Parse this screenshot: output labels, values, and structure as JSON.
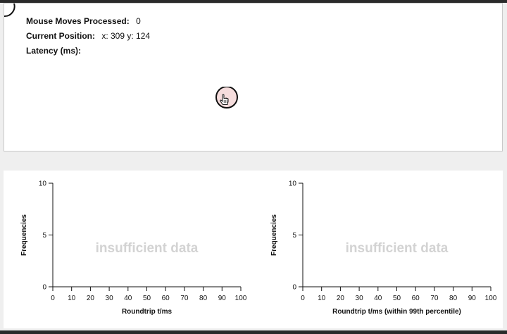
{
  "stats": {
    "moves_label": "Mouse Moves Processed:",
    "moves_value": "0",
    "position_label": "Current Position:",
    "position_value": "x: 309 y: 124",
    "latency_label": "Latency (ms):",
    "latency_value": ""
  },
  "charts": [
    {
      "ylabel": "Frequencies",
      "xlabel": "Roundtrip t/ms",
      "placeholder": "insufficient data",
      "x_ticks": [
        "0",
        "10",
        "20",
        "30",
        "40",
        "50",
        "60",
        "70",
        "80",
        "90",
        "100"
      ],
      "y_ticks": [
        "0",
        "5",
        "10"
      ]
    },
    {
      "ylabel": "Frequencies",
      "xlabel": "Roundtrip t/ms (within 99th percentile)",
      "placeholder": "insufficient data",
      "x_ticks": [
        "0",
        "10",
        "20",
        "30",
        "40",
        "50",
        "60",
        "70",
        "80",
        "90",
        "100"
      ],
      "y_ticks": [
        "0",
        "5",
        "10"
      ]
    }
  ],
  "chart_data": [
    {
      "type": "bar",
      "xlabel": "Roundtrip t/ms",
      "ylabel": "Frequencies",
      "xlim": [
        0,
        100
      ],
      "ylim": [
        0,
        10
      ],
      "values": [],
      "annotation": "insufficient data"
    },
    {
      "type": "bar",
      "xlabel": "Roundtrip t/ms (within 99th percentile)",
      "ylabel": "Frequencies",
      "xlim": [
        0,
        100
      ],
      "ylim": [
        0,
        10
      ],
      "values": [],
      "annotation": "insufficient data"
    }
  ],
  "colors": {
    "placeholder_text": "#d3d3d3",
    "cursor_fill": "#f6dddd",
    "page_background": "#efefef"
  }
}
